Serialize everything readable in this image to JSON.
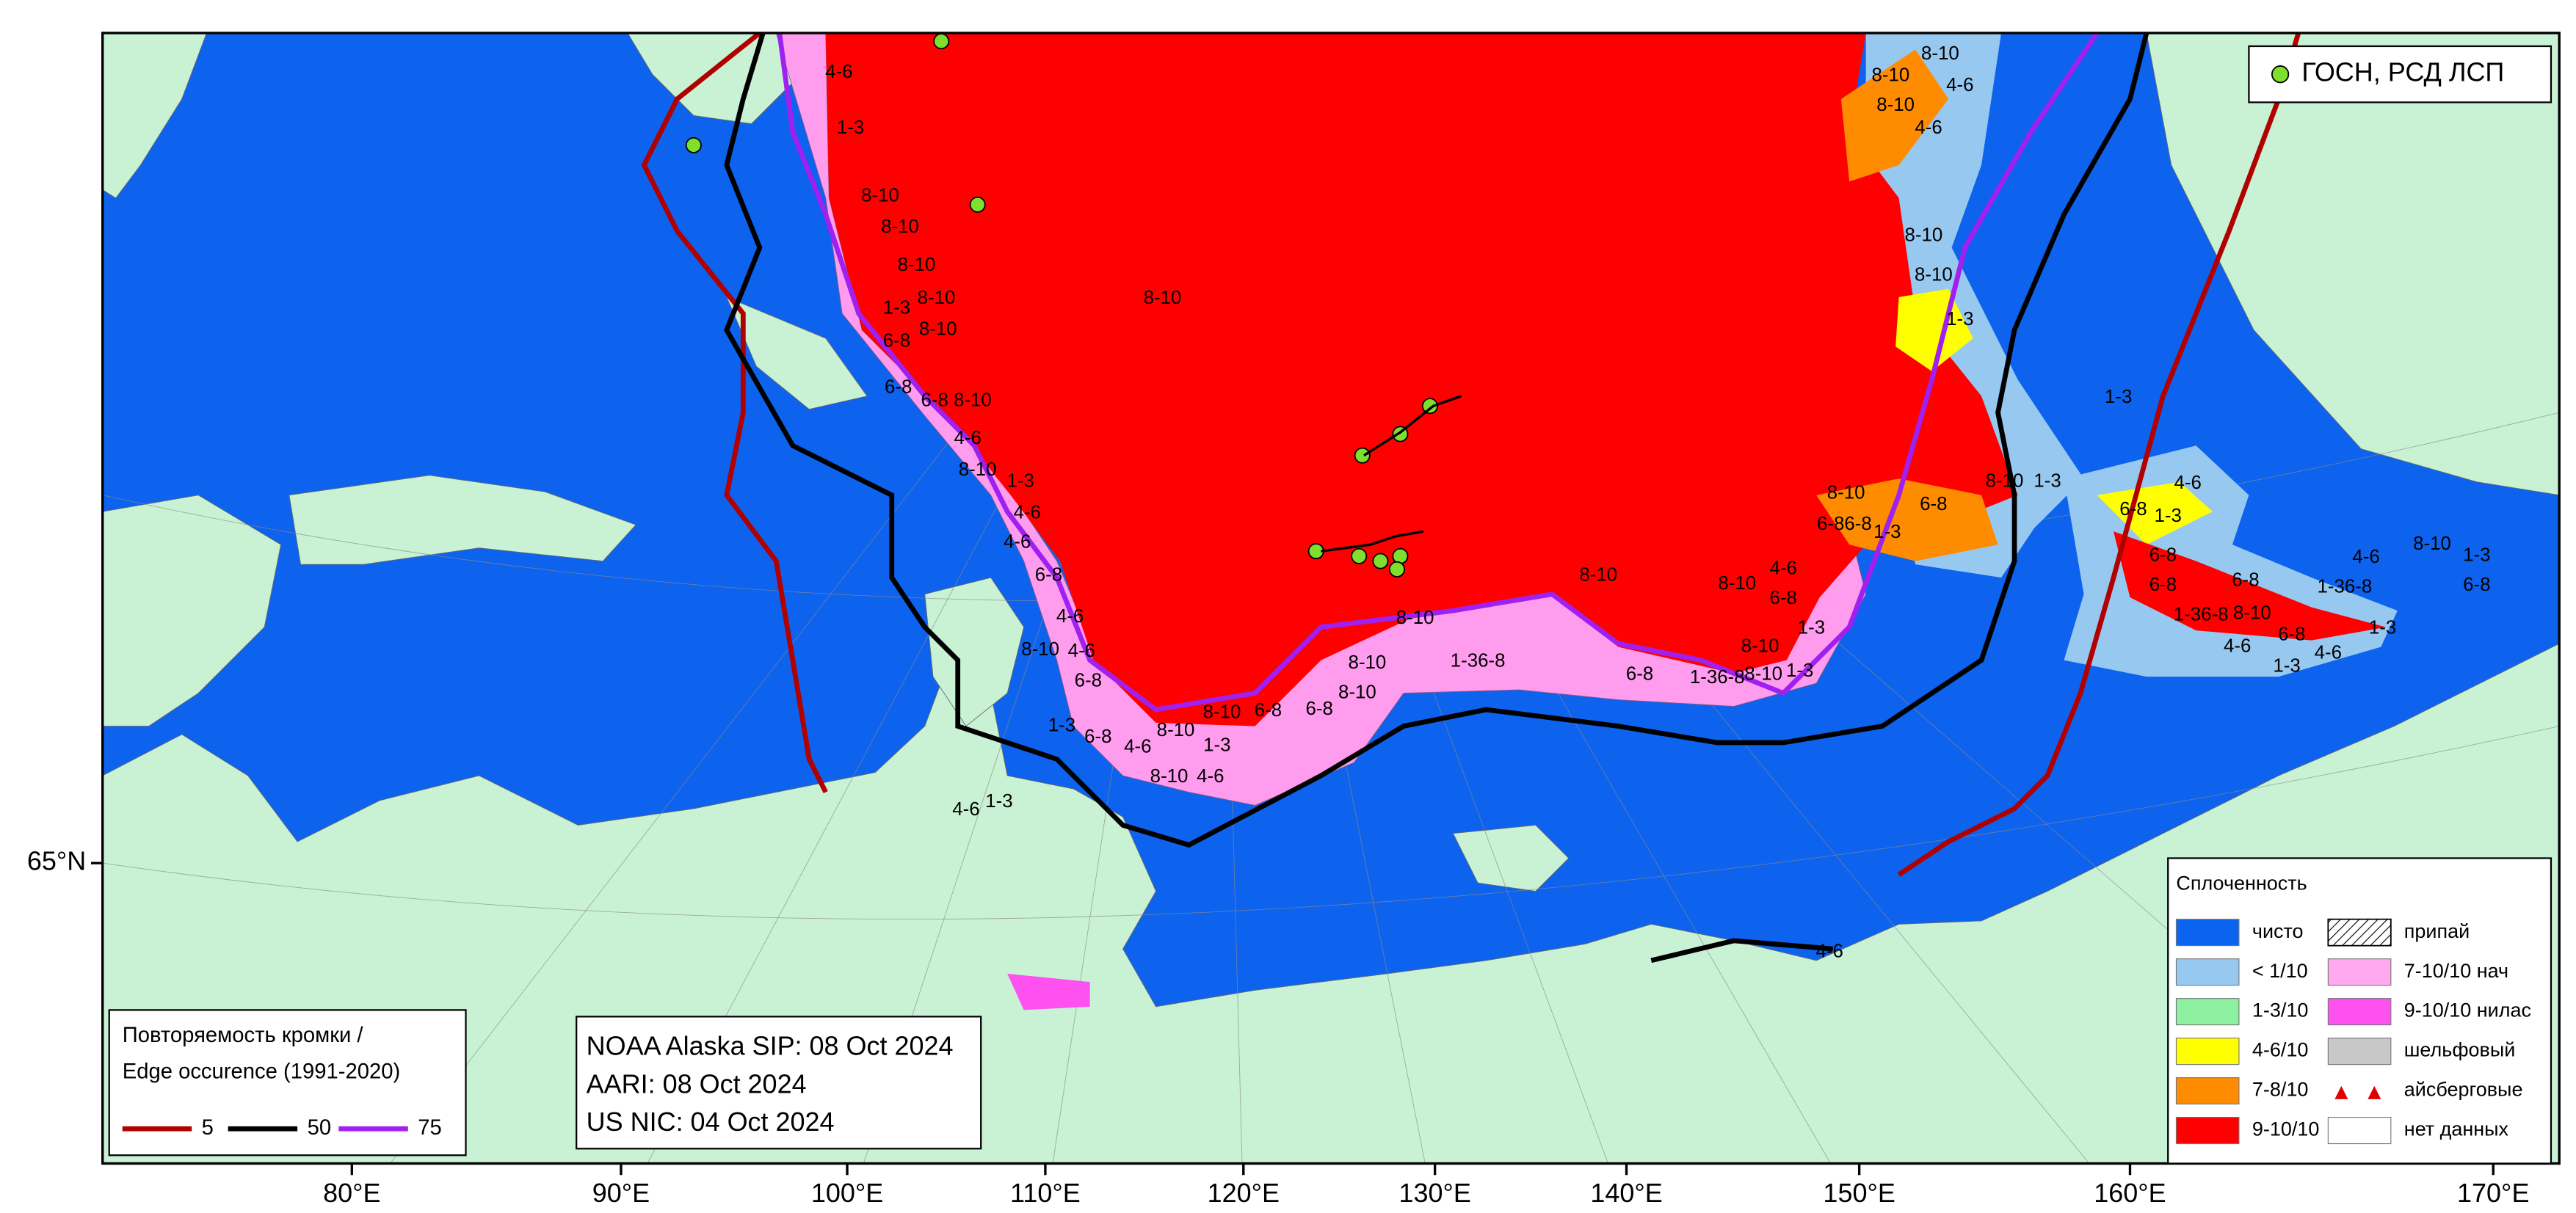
{
  "top_legend": {
    "label": "ГОСН, РСД ЛСП",
    "color": "#7ee02c"
  },
  "edge_legend": {
    "title": [
      "Повторяемость кромки /",
      "Edge occurence (1991-2020)"
    ],
    "items": [
      {
        "label": "5",
        "color": "#b00000"
      },
      {
        "label": "50",
        "color": "#000000"
      },
      {
        "label": "75",
        "color": "#a020f0"
      }
    ]
  },
  "info": [
    "NOAA Alaska SIP: 08 Oct 2024",
    "AARI: 08 Oct 2024",
    "US NIC: 04 Oct 2024"
  ],
  "concentration_legend": {
    "title": "Сплоченность",
    "items": [
      {
        "label": "чисто",
        "color": "#0a64f0"
      },
      {
        "label": "< 1/10",
        "color": "#96c8f0"
      },
      {
        "label": "1-3/10",
        "color": "#8cf0a0"
      },
      {
        "label": "4-6/10",
        "color": "#ffff00"
      },
      {
        "label": "7-8/10",
        "color": "#ff8c00"
      },
      {
        "label": "9-10/10",
        "color": "#ff0000"
      },
      {
        "label": "припай",
        "color": "hatch"
      },
      {
        "label": "7-10/10 нач",
        "color": "#ffaaf0"
      },
      {
        "label": "9-10/10 нилас",
        "color": "#ff50f0"
      },
      {
        "label": "шельфовый",
        "color": "#c8c8c8"
      },
      {
        "label": "айсберговые",
        "color": "triangles"
      },
      {
        "label": "нет данных",
        "color": "#ffffff"
      }
    ]
  },
  "axes": {
    "longitude_labels": [
      "80°E",
      "90°E",
      "100°E",
      "110°E",
      "120°E",
      "130°E",
      "140°E",
      "150°E",
      "160°E",
      "170°E"
    ],
    "latitude_labels": [
      "65°N"
    ]
  },
  "ice_labels": [
    "4-6",
    "1-3",
    "8-10",
    "8-10",
    "8-10",
    "1-3",
    "8-10",
    "6-8",
    "8-10",
    "6-8",
    "6-8",
    "8-10",
    "4-6",
    "8-10",
    "1-3",
    "4-6",
    "4-6",
    "6-8",
    "4-6",
    "8-10",
    "4-6",
    "6-8",
    "1-3",
    "6-8",
    "4-6",
    "8-10",
    "1-3",
    "8-10",
    "6-8",
    "6-8",
    "8-10",
    "8-10",
    "8-10",
    "8-10",
    "8-10",
    "1-36-8",
    "6-8",
    "1-36-8",
    "8-10",
    "1-3",
    "8-10",
    "1-3",
    "6-8",
    "4-6",
    "8-10",
    "6-86-8",
    "1-3",
    "8-10",
    "6-8",
    "8-10",
    "1-3",
    "1-3",
    "1-3",
    "8-10",
    "8-10",
    "4-6",
    "8-10",
    "8-10",
    "4-6",
    "8-10",
    "6-8",
    "1-3",
    "4-6",
    "6-8",
    "6-8",
    "6-8",
    "1-36-8",
    "8-10",
    "4-6",
    "8-10",
    "1-36-8",
    "6-8",
    "1-3",
    "6-8",
    "4-6",
    "4-6",
    "1-3",
    "1-3",
    "4-6",
    "4-6",
    "1-3",
    "8-10",
    "4-6"
  ]
}
